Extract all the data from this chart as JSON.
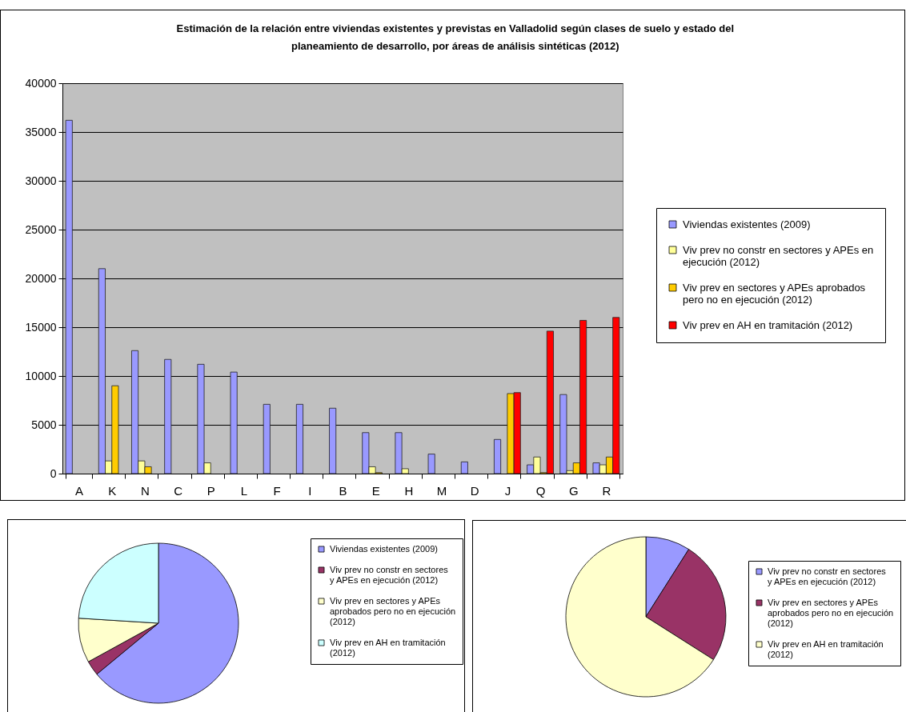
{
  "chart_data": [
    {
      "type": "bar",
      "title": "Estimación de la relación entre viviendas existentes y previstas en Valladolid según clases de suelo y estado del planeamiento de desarrollo, por áreas de análisis sintéticas (2012)",
      "categories": [
        "A",
        "K",
        "N",
        "C",
        "P",
        "L",
        "F",
        "I",
        "B",
        "E",
        "H",
        "M",
        "D",
        "J",
        "Q",
        "G",
        "R"
      ],
      "series": [
        {
          "name": "Viviendas existentes (2009)",
          "color": "#9999ff",
          "values": [
            36200,
            21000,
            12600,
            11700,
            11200,
            10400,
            7100,
            7100,
            6700,
            4200,
            4200,
            2000,
            1200,
            3500,
            900,
            8100,
            1100
          ]
        },
        {
          "name": "Viv prev no constr en sectores y APEs en ejecución (2012)",
          "color": "#ffff99",
          "values": [
            null,
            1300,
            1300,
            null,
            1100,
            null,
            null,
            null,
            null,
            700,
            500,
            null,
            null,
            null,
            1700,
            300,
            900
          ]
        },
        {
          "name": "Viv prev en sectores y APEs aprobados pero no en ejecución (2012)",
          "color": "#ffcc00",
          "values": [
            null,
            9000,
            700,
            null,
            null,
            null,
            null,
            null,
            null,
            100,
            null,
            null,
            null,
            8200,
            100,
            1100,
            1700
          ]
        },
        {
          "name": "Viv prev en AH en tramitación (2012)",
          "color": "#ff0000",
          "values": [
            null,
            null,
            null,
            null,
            null,
            null,
            null,
            null,
            null,
            null,
            null,
            null,
            null,
            8300,
            14600,
            15700,
            16000
          ]
        }
      ],
      "ylim": [
        0,
        40000
      ],
      "yticks": [
        0,
        5000,
        10000,
        15000,
        20000,
        25000,
        30000,
        35000,
        40000
      ],
      "grid": "y",
      "legend": "right"
    },
    {
      "type": "pie",
      "categories": [
        "Viviendas existentes (2009)",
        "Viv prev no constr en sectores y APEs en ejecución (2012)",
        "Viv prev en sectores y APEs aprobados pero no en ejecución (2012)",
        "Viv prev en AH en tramitación (2012)"
      ],
      "values": [
        64,
        3,
        9,
        24
      ],
      "colors": [
        "#9999ff",
        "#993366",
        "#ffffcc",
        "#ccffff"
      ],
      "legend": "right"
    },
    {
      "type": "pie",
      "categories": [
        "Viv prev no constr en sectores y APEs en ejecución (2012)",
        "Viv prev en sectores y APEs aprobados pero no en ejecución (2012)",
        "Viv prev en AH en tramitación (2012)"
      ],
      "values": [
        9,
        25,
        66
      ],
      "colors": [
        "#9999ff",
        "#993366",
        "#ffffcc"
      ],
      "legend": "right"
    }
  ]
}
